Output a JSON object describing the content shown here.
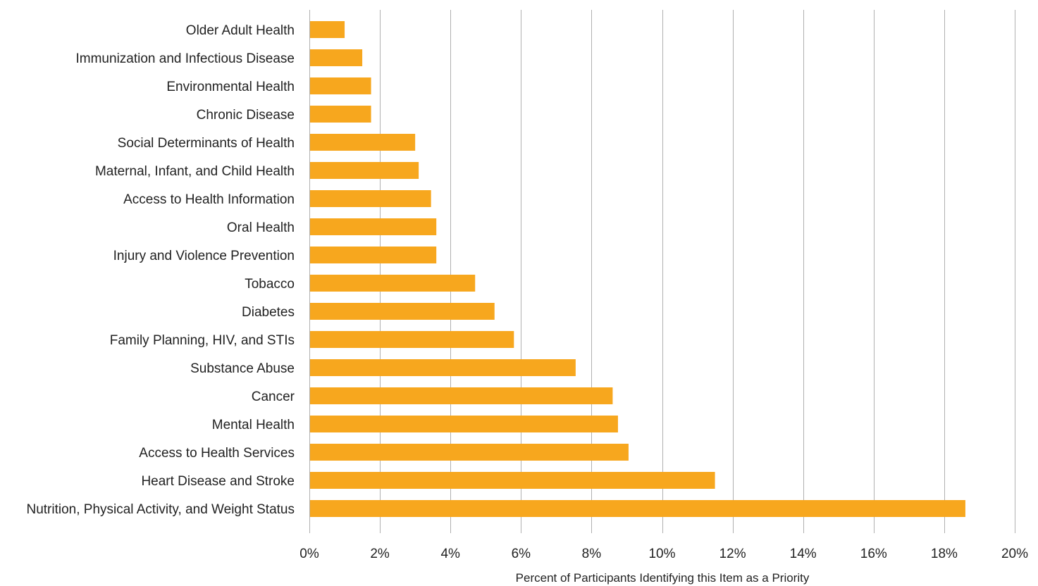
{
  "chart_data": {
    "type": "bar",
    "orientation": "horizontal",
    "title": "",
    "xlabel": "Percent of Participants Identifying this Item as a Priority",
    "ylabel": "",
    "xlim": [
      0,
      20
    ],
    "x_ticks": [
      0,
      2,
      4,
      6,
      8,
      10,
      12,
      14,
      16,
      18,
      20
    ],
    "x_tick_labels": [
      "0%",
      "2%",
      "4%",
      "6%",
      "8%",
      "10%",
      "12%",
      "14%",
      "16%",
      "18%",
      "20%"
    ],
    "grid": "vertical",
    "legend": "none",
    "bar_color": "#F7A71E",
    "categories": [
      "Older Adult Health",
      "Immunization and Infectious Disease",
      "Environmental Health",
      "Chronic Disease",
      "Social Determinants of Health",
      "Maternal, Infant, and Child Health",
      "Access to Health Information",
      "Oral Health",
      "Injury and Violence Prevention",
      "Tobacco",
      "Diabetes",
      "Family Planning, HIV, and STIs",
      "Substance Abuse",
      "Cancer",
      "Mental Health",
      "Access to Health Services",
      "Heart Disease and Stroke",
      "Nutrition, Physical Activity, and Weight Status"
    ],
    "values": [
      1.0,
      1.5,
      1.75,
      1.75,
      3.0,
      3.1,
      3.45,
      3.6,
      3.6,
      4.7,
      5.25,
      5.8,
      7.55,
      8.6,
      8.75,
      9.05,
      11.5,
      18.6
    ]
  }
}
